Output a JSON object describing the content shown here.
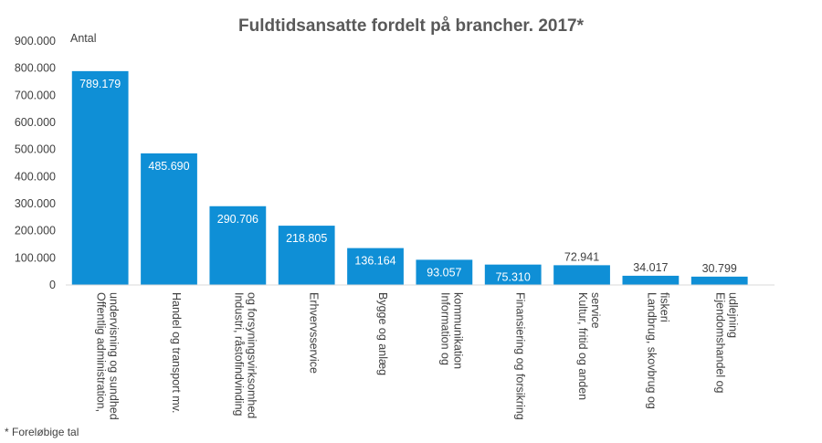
{
  "chart_data": {
    "type": "bar",
    "title": "Fuldtidsansatte fordelt på brancher. 2017*",
    "ylabel": "Antal",
    "xlabel": "",
    "footnote": "* Foreløbige tal",
    "ylim": [
      0,
      900000
    ],
    "yticks": [
      "0",
      "100.000",
      "200.000",
      "300.000",
      "400.000",
      "500.000",
      "600.000",
      "700.000",
      "800.000",
      "900.000"
    ],
    "categories": [
      [
        "Offentlig administration,",
        "undervisning og sundhed"
      ],
      [
        "Handel og transport mv."
      ],
      [
        "Industri, råstofindvinding",
        "og forsyningsvirksomhed"
      ],
      [
        "Erhvervsservice"
      ],
      [
        "Bygge og anlæg"
      ],
      [
        "Information og",
        "kommunikation"
      ],
      [
        "Finansiering og forsikring"
      ],
      [
        "Kultur, fritid og anden",
        "service"
      ],
      [
        "Landbrug, skovbrug og",
        "fiskeri"
      ],
      [
        "Ejendomshandel og",
        "udlejning"
      ]
    ],
    "values": [
      789179,
      485690,
      290706,
      218805,
      136164,
      93057,
      75310,
      72941,
      34017,
      30799
    ],
    "data_labels": [
      "789.179",
      "485.690",
      "290.706",
      "218.805",
      "136.164",
      "93.057",
      "75.310",
      "72.941",
      "34.017",
      "30.799"
    ],
    "grid": false,
    "legend": "none",
    "colors": {
      "bar": "#0f8fd6",
      "label_inside": "#ffffff",
      "label_above": "#404040"
    }
  }
}
